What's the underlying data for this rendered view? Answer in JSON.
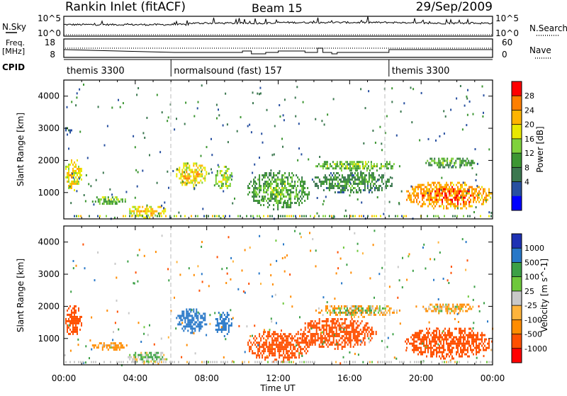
{
  "header": {
    "station": "Rankin Inlet (fitACF)",
    "beam": "Beam 15",
    "date": "29/Sep/2009"
  },
  "noise_panel": {
    "left_label": "N.Sky",
    "left_ticks": [
      "10^5",
      "10^0"
    ],
    "right_label": "N.Search",
    "right_ticks": [
      "10^5",
      "10^0"
    ]
  },
  "freq_panel": {
    "left_label_1": "Freq.",
    "left_label_2": "[MHz]",
    "left_ticks": [
      "18",
      "8"
    ],
    "right_label": "Nave",
    "right_ticks": [
      "60",
      "0"
    ]
  },
  "cpid_panel": {
    "label": "CPID",
    "segments": [
      {
        "text": "themis 3300",
        "start_hour": 0
      },
      {
        "text": "normalsound (fast) 157",
        "start_hour": 6
      },
      {
        "text": "themis 3300",
        "start_hour": 18.2
      }
    ]
  },
  "time_axis": {
    "label": "Time UT",
    "ticks": [
      "00:00",
      "04:00",
      "08:00",
      "12:00",
      "16:00",
      "20:00",
      "00:00"
    ]
  },
  "power_colorbar": {
    "label": "Power [dB]",
    "ticks": [
      "28",
      "24",
      "20",
      "16",
      "12",
      "8",
      "4"
    ],
    "colors": [
      "#ff0000",
      "#ff7f00",
      "#ffb400",
      "#e8e800",
      "#7fd23c",
      "#3c9632",
      "#3c7850",
      "#2850a0",
      "#0000ff"
    ]
  },
  "velocity_colorbar": {
    "label": "Velocity [m s^-1]",
    "ticks": [
      "1000",
      "500",
      "100",
      "25",
      "-25",
      "-100",
      "-500",
      "-1000"
    ],
    "colors": [
      "#1e32b4",
      "#2878c8",
      "#3ca046",
      "#6ec83c",
      "#c8c8c8",
      "#ffb43c",
      "#ff8c00",
      "#ff5000",
      "#ff0000"
    ]
  },
  "chart_data": [
    {
      "type": "heatmap",
      "title": "Power",
      "xlabel": "Time UT",
      "ylabel": "Slant Range [km]",
      "xlim": [
        0,
        24
      ],
      "ylim": [
        180,
        4500
      ],
      "yticks": [
        1000,
        2000,
        3000,
        4000
      ],
      "colorbar": "Power [dB]",
      "regions": [
        {
          "t0": 0.0,
          "t1": 1.0,
          "r0": 1100,
          "r1": 2100,
          "value_db": 22
        },
        {
          "t0": 0.0,
          "t1": 0.4,
          "r0": 2800,
          "r1": 3100,
          "value_db": 8
        },
        {
          "t0": 1.5,
          "t1": 3.5,
          "r0": 650,
          "r1": 950,
          "value_db": 16
        },
        {
          "t0": 3.5,
          "t1": 5.8,
          "r0": 250,
          "r1": 650,
          "value_db": 22
        },
        {
          "t0": 6.2,
          "t1": 8.0,
          "r0": 1200,
          "r1": 2000,
          "value_db": 22
        },
        {
          "t0": 8.4,
          "t1": 9.4,
          "r0": 1100,
          "r1": 1900,
          "value_db": 18
        },
        {
          "t0": 10.2,
          "t1": 13.8,
          "r0": 500,
          "r1": 1700,
          "value_db": 14
        },
        {
          "t0": 13.8,
          "t1": 18.5,
          "r0": 1000,
          "r1": 1700,
          "value_db": 12
        },
        {
          "t0": 14.0,
          "t1": 18.8,
          "r0": 1700,
          "r1": 2050,
          "value_db": 16
        },
        {
          "t0": 19.0,
          "t1": 24.0,
          "r0": 500,
          "r1": 1400,
          "value_db": 26
        },
        {
          "t0": 20.0,
          "t1": 23.0,
          "r0": 1800,
          "r1": 2150,
          "value_db": 14
        }
      ]
    },
    {
      "type": "heatmap",
      "title": "Velocity",
      "xlabel": "Time UT",
      "ylabel": "Slant Range [km]",
      "xlim": [
        0,
        24
      ],
      "ylim": [
        180,
        4500
      ],
      "yticks": [
        1000,
        2000,
        3000,
        4000
      ],
      "colorbar": "Velocity [m s^-1]",
      "regions": [
        {
          "t0": 0.0,
          "t1": 1.0,
          "r0": 1100,
          "r1": 2100,
          "value_ms": -500
        },
        {
          "t0": 1.5,
          "t1": 3.5,
          "r0": 650,
          "r1": 950,
          "value_ms": -100
        },
        {
          "t0": 3.5,
          "t1": 5.8,
          "r0": 250,
          "r1": 650,
          "value_ms": 100
        },
        {
          "t0": 6.2,
          "t1": 8.0,
          "r0": 1200,
          "r1": 2000,
          "value_ms": 500
        },
        {
          "t0": 8.4,
          "t1": 9.4,
          "r0": 1100,
          "r1": 1900,
          "value_ms": 500
        },
        {
          "t0": 10.2,
          "t1": 13.8,
          "r0": 300,
          "r1": 1300,
          "value_ms": -500
        },
        {
          "t0": 13.0,
          "t1": 17.5,
          "r0": 700,
          "r1": 1700,
          "value_ms": -500
        },
        {
          "t0": 14.0,
          "t1": 18.8,
          "r0": 1700,
          "r1": 2100,
          "value_ms": 0
        },
        {
          "t0": 19.0,
          "t1": 24.0,
          "r0": 400,
          "r1": 1400,
          "value_ms": -500
        },
        {
          "t0": 20.0,
          "t1": 23.0,
          "r0": 1800,
          "r1": 2150,
          "value_ms": -25
        }
      ]
    }
  ]
}
